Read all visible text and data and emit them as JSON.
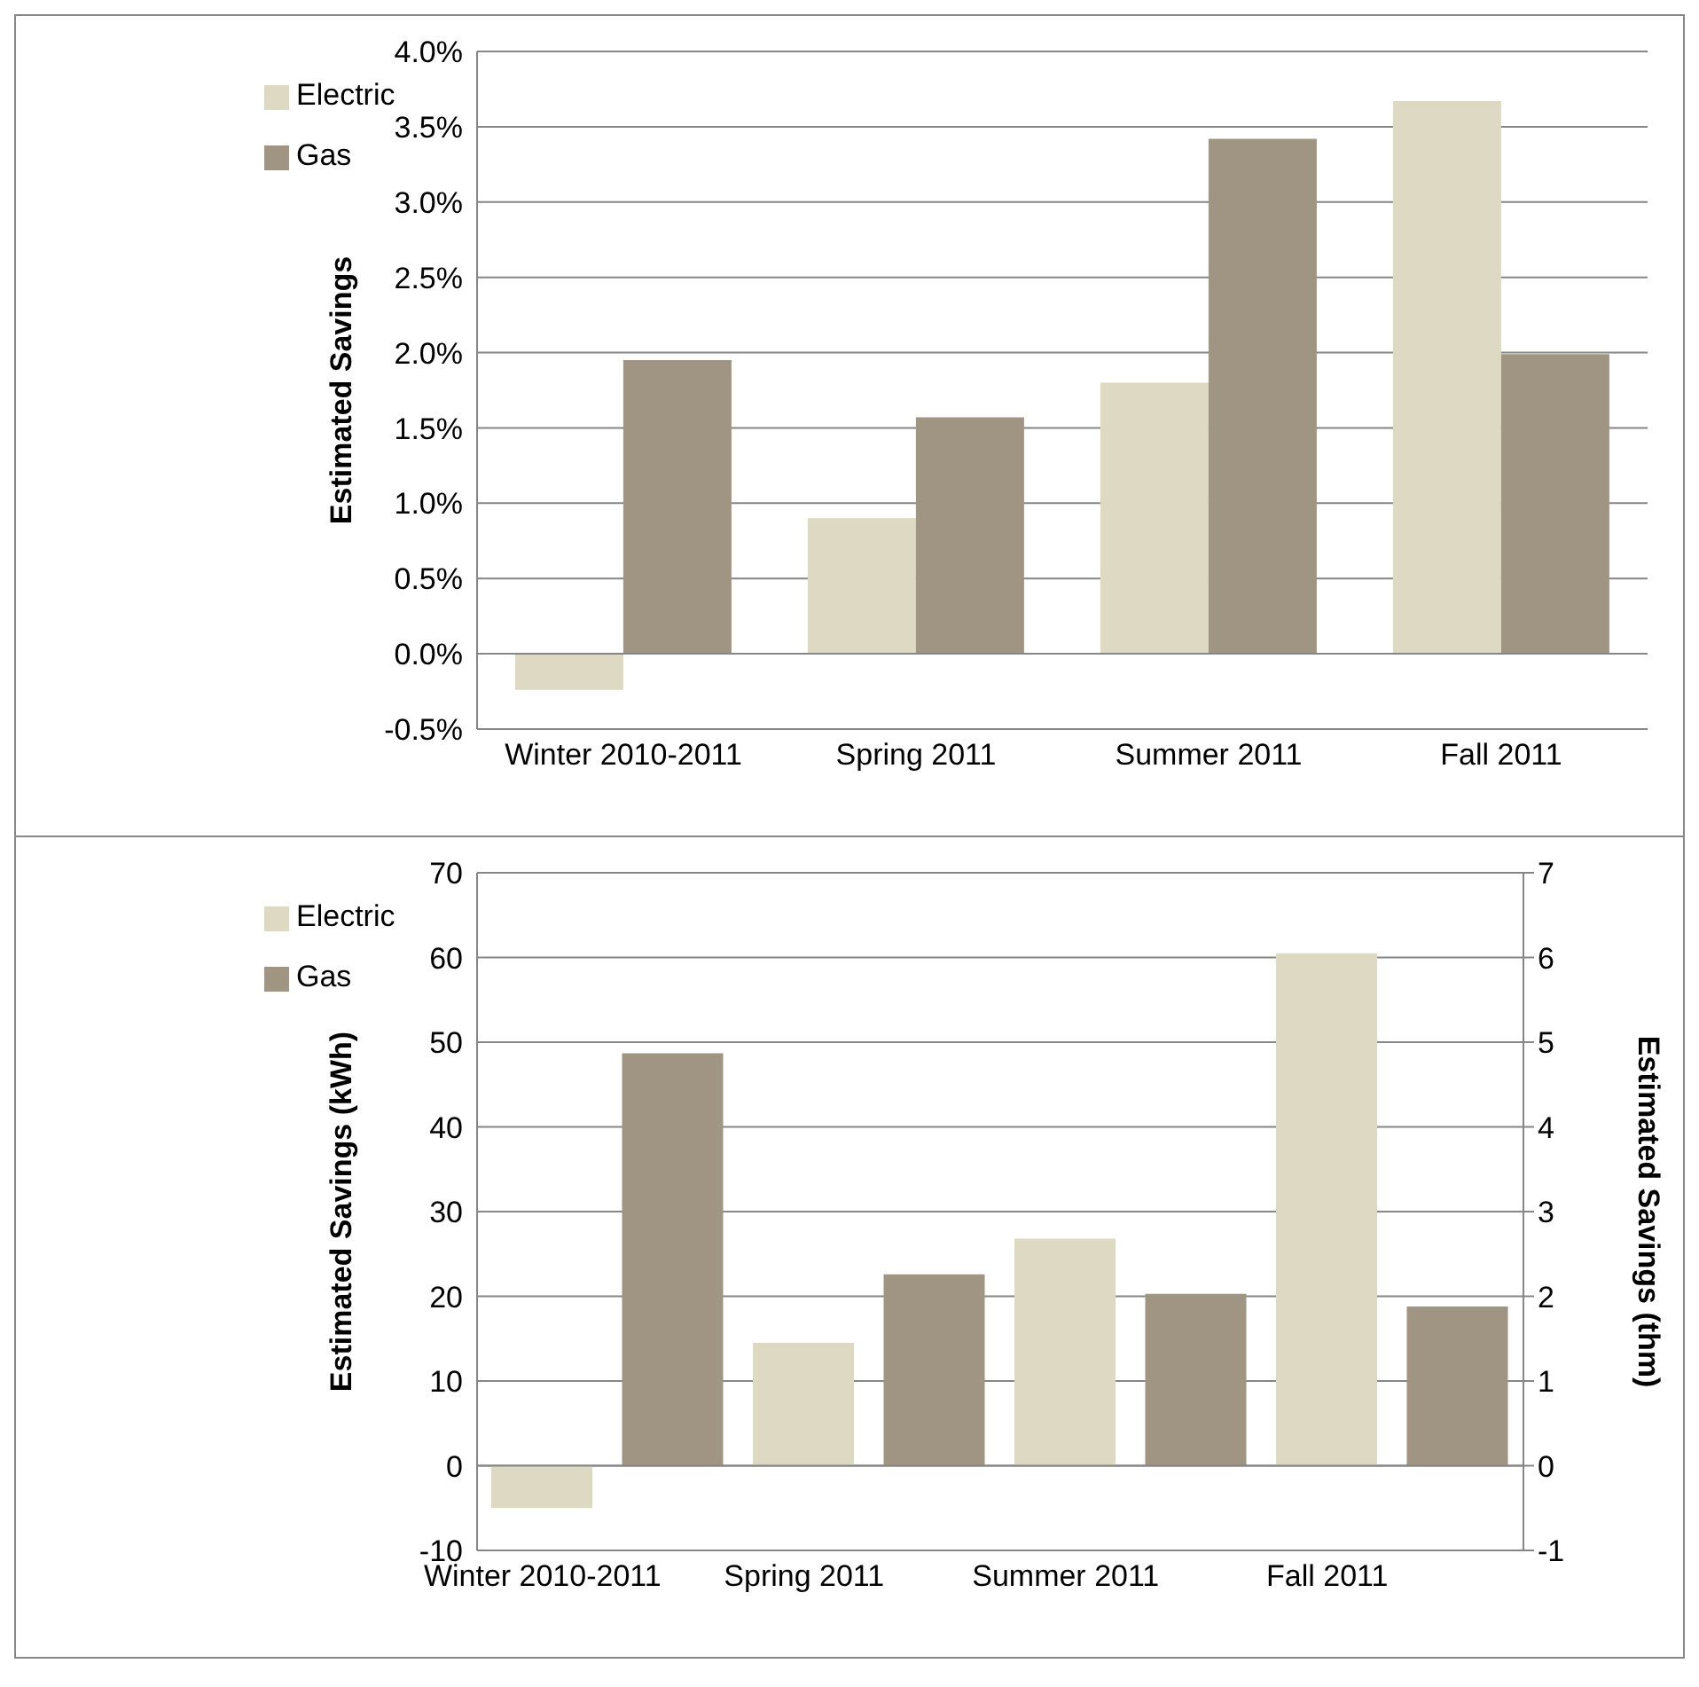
{
  "chart_data": [
    {
      "type": "bar",
      "ylabel": "Estimated Savings",
      "categories": [
        "Winter 2010-2011",
        "Spring 2011",
        "Summer 2011",
        "Fall 2011"
      ],
      "series": [
        {
          "name": "Electric",
          "color": "#ddd9c3",
          "values": [
            -0.24,
            0.9,
            1.8,
            3.67
          ]
        },
        {
          "name": "Gas",
          "color": "#a09583",
          "values": [
            1.95,
            1.57,
            3.42,
            1.99
          ]
        }
      ],
      "ylim": [
        -0.5,
        4
      ],
      "yticks": [
        {
          "value": -0.5,
          "label": "-0.5%"
        },
        {
          "value": 0,
          "label": "0.0%"
        },
        {
          "value": 0.5,
          "label": "0.5%"
        },
        {
          "value": 1,
          "label": "1.0%"
        },
        {
          "value": 1.5,
          "label": "1.5%"
        },
        {
          "value": 2,
          "label": "2.0%"
        },
        {
          "value": 2.5,
          "label": "2.5%"
        },
        {
          "value": 3,
          "label": "3.0%"
        },
        {
          "value": 3.5,
          "label": "3.5%"
        },
        {
          "value": 4,
          "label": "4.0%"
        }
      ],
      "grid": "y",
      "legend": "top left"
    },
    {
      "type": "bar",
      "ylabel": "Estimated Savings  (kWh)",
      "y2label": "Estimated Savings  (thm)",
      "categories": [
        "Winter 2010-2011",
        null,
        "Spring 2011",
        null,
        "Summer 2011",
        null,
        "Fall 2011",
        null
      ],
      "series": [
        {
          "name": "Electric",
          "color": "#ddd9c3",
          "values": [
            -5,
            null,
            14.5,
            null,
            26.8,
            null,
            60.5,
            null
          ]
        },
        {
          "name": "Gas",
          "color": "#a09583",
          "axis": "y2",
          "values": [
            null,
            4.87,
            null,
            2.26,
            null,
            2.03,
            null,
            1.88
          ]
        }
      ],
      "ylim": [
        -10,
        70
      ],
      "yticks": [
        -10,
        0,
        10,
        20,
        30,
        40,
        50,
        60,
        70
      ],
      "y2lim": [
        -1,
        7
      ],
      "y2ticks": [
        -1,
        0,
        1,
        2,
        3,
        4,
        5,
        6,
        7
      ],
      "grid": "y",
      "legend": "top left"
    }
  ]
}
